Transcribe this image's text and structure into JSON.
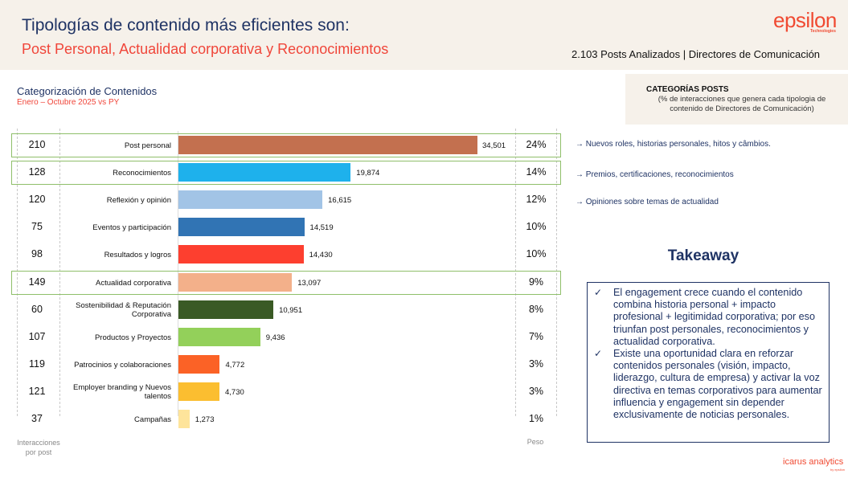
{
  "header": {
    "title": "Tipologías de contenido más eficientes son:",
    "subtitle": "Post Personal, Actualidad corporativa y Reconocimientos",
    "stats": "2.103 Posts Analizados | Directores de Comunicación",
    "logo": "epsilon",
    "logo_sub": "Technologies"
  },
  "section": {
    "title": "Categorización de Contenidos",
    "subtitle": "Enero – Octubre 2025 vs PY"
  },
  "categories_box": {
    "title": "CATEGORÍAS POSTS",
    "description": "(% de interacciones que genera cada tipologia de contenido de Directores de Comunicación)"
  },
  "footer": {
    "left_label": "Interacciones por post",
    "right_label": "Peso",
    "brand": "icarus analytics",
    "brand_sub": "by epsilon"
  },
  "descriptions": [
    "→ Nuevos roles, historias personales, hitos y câmbios.",
    "→ Premios, certificaciones, reconocimientos",
    "→ Opiniones sobre temas de actualidad"
  ],
  "takeaway": {
    "title": "Takeaway",
    "check_icon": "✓",
    "items": [
      "El engagement crece cuando el contenido combina historia personal + impacto profesional + legitimidad corporativa; por eso triunfan post personales, reconocimientos y actualidad corporativa.",
      "Existe una oportunidad clara en reforzar contenidos personales (visión, impacto, liderazgo, cultura de empresa) y activar la voz directiva en temas corporativos para aumentar influencia y engagement sin depender exclusivamente de noticias personales."
    ]
  },
  "chart_data": {
    "type": "bar",
    "orientation": "horizontal",
    "title": "Categorización de Contenidos",
    "subtitle": "Enero – Octubre 2025 vs PY",
    "xlabel": "",
    "ylabel": "",
    "xlim": [
      0,
      34501
    ],
    "grid": false,
    "categories": [
      "Post personal",
      "Reconocimientos",
      "Reflexión y opinión",
      "Eventos y participación",
      "Resultados y logros",
      "Actualidad corporativa",
      "Sostenibilidad & Reputación Corporativa",
      "Productos y Proyectos",
      "Patrocinios y colaboraciones",
      "Employer branding y Nuevos talentos",
      "Campañas"
    ],
    "values": [
      34501,
      19874,
      16615,
      14519,
      14430,
      13097,
      10951,
      9436,
      4772,
      4730,
      1273
    ],
    "value_labels": [
      "34,501",
      "19,874",
      "16,615",
      "14,519",
      "14,430",
      "13,097",
      "10,951",
      "9,436",
      "4,772",
      "4,730",
      "1,273"
    ],
    "interactions_per_post": [
      210,
      128,
      120,
      75,
      98,
      149,
      60,
      107,
      119,
      121,
      37
    ],
    "weight_pct": [
      "24%",
      "14%",
      "12%",
      "10%",
      "10%",
      "9%",
      "8%",
      "7%",
      "3%",
      "3%",
      "1%"
    ],
    "colors": [
      "#c3704f",
      "#1eb1ec",
      "#a2c4e6",
      "#3174b4",
      "#fd3f2f",
      "#f3b08a",
      "#3a5a25",
      "#93d05a",
      "#fb6226",
      "#fbbe30",
      "#fee49b"
    ],
    "highlighted": [
      "Post personal",
      "Reconocimientos",
      "Actualidad corporativa"
    ],
    "highlight_color": "#8fbf6a"
  }
}
